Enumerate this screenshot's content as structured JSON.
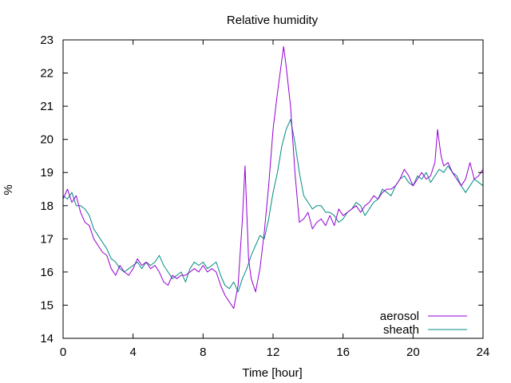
{
  "chart_data": {
    "type": "line",
    "title": "Relative humidity",
    "xlabel": "Time [hour]",
    "ylabel": "%",
    "xlim": [
      0,
      24
    ],
    "ylim": [
      14,
      23
    ],
    "x_ticks": [
      0,
      4,
      8,
      12,
      16,
      20,
      24
    ],
    "y_ticks": [
      14,
      15,
      16,
      17,
      18,
      19,
      20,
      21,
      22,
      23
    ],
    "grid": false,
    "legend_position": "bottom-right",
    "series": [
      {
        "name": "aerosol",
        "color": "#9400d3",
        "points": [
          [
            0.0,
            18.2
          ],
          [
            0.25,
            18.5
          ],
          [
            0.5,
            18.1
          ],
          [
            0.75,
            18.3
          ],
          [
            1.0,
            17.8
          ],
          [
            1.25,
            17.5
          ],
          [
            1.5,
            17.4
          ],
          [
            1.75,
            17.0
          ],
          [
            2.0,
            16.8
          ],
          [
            2.25,
            16.6
          ],
          [
            2.5,
            16.5
          ],
          [
            2.75,
            16.1
          ],
          [
            3.0,
            15.9
          ],
          [
            3.25,
            16.2
          ],
          [
            3.5,
            16.0
          ],
          [
            3.75,
            15.9
          ],
          [
            4.0,
            16.1
          ],
          [
            4.25,
            16.4
          ],
          [
            4.5,
            16.2
          ],
          [
            4.75,
            16.3
          ],
          [
            5.0,
            16.1
          ],
          [
            5.25,
            16.2
          ],
          [
            5.5,
            16.0
          ],
          [
            5.75,
            15.7
          ],
          [
            6.0,
            15.6
          ],
          [
            6.25,
            15.9
          ],
          [
            6.5,
            15.8
          ],
          [
            6.75,
            15.9
          ],
          [
            7.0,
            15.9
          ],
          [
            7.25,
            16.0
          ],
          [
            7.5,
            16.1
          ],
          [
            7.75,
            16.0
          ],
          [
            8.0,
            16.2
          ],
          [
            8.25,
            16.0
          ],
          [
            8.5,
            16.1
          ],
          [
            8.75,
            16.0
          ],
          [
            9.0,
            15.6
          ],
          [
            9.25,
            15.3
          ],
          [
            9.5,
            15.1
          ],
          [
            9.75,
            14.9
          ],
          [
            10.0,
            15.6
          ],
          [
            10.25,
            17.6
          ],
          [
            10.4,
            19.2
          ],
          [
            10.6,
            16.4
          ],
          [
            10.75,
            15.8
          ],
          [
            11.0,
            15.4
          ],
          [
            11.25,
            16.1
          ],
          [
            11.5,
            17.2
          ],
          [
            11.75,
            18.6
          ],
          [
            12.0,
            20.3
          ],
          [
            12.25,
            21.4
          ],
          [
            12.5,
            22.4
          ],
          [
            12.6,
            22.8
          ],
          [
            12.75,
            22.2
          ],
          [
            13.0,
            21.0
          ],
          [
            13.25,
            19.0
          ],
          [
            13.5,
            17.5
          ],
          [
            13.75,
            17.6
          ],
          [
            14.0,
            17.8
          ],
          [
            14.25,
            17.3
          ],
          [
            14.5,
            17.5
          ],
          [
            14.75,
            17.6
          ],
          [
            15.0,
            17.4
          ],
          [
            15.25,
            17.7
          ],
          [
            15.5,
            17.4
          ],
          [
            15.75,
            17.9
          ],
          [
            16.0,
            17.7
          ],
          [
            16.25,
            17.8
          ],
          [
            16.5,
            17.9
          ],
          [
            16.75,
            18.0
          ],
          [
            17.0,
            17.8
          ],
          [
            17.25,
            18.0
          ],
          [
            17.5,
            18.1
          ],
          [
            17.75,
            18.3
          ],
          [
            18.0,
            18.2
          ],
          [
            18.25,
            18.4
          ],
          [
            18.5,
            18.5
          ],
          [
            18.75,
            18.5
          ],
          [
            19.0,
            18.6
          ],
          [
            19.25,
            18.8
          ],
          [
            19.5,
            19.1
          ],
          [
            19.75,
            18.9
          ],
          [
            20.0,
            18.6
          ],
          [
            20.25,
            18.8
          ],
          [
            20.5,
            19.0
          ],
          [
            20.75,
            18.8
          ],
          [
            21.0,
            18.9
          ],
          [
            21.25,
            19.3
          ],
          [
            21.4,
            20.3
          ],
          [
            21.6,
            19.5
          ],
          [
            21.75,
            19.2
          ],
          [
            22.0,
            19.3
          ],
          [
            22.25,
            19.0
          ],
          [
            22.5,
            18.8
          ],
          [
            22.75,
            18.6
          ],
          [
            23.0,
            18.8
          ],
          [
            23.25,
            19.3
          ],
          [
            23.5,
            18.8
          ],
          [
            23.75,
            18.9
          ],
          [
            24.0,
            19.1
          ]
        ]
      },
      {
        "name": "sheath",
        "color": "#008b80",
        "points": [
          [
            0.0,
            18.3
          ],
          [
            0.25,
            18.2
          ],
          [
            0.5,
            18.4
          ],
          [
            0.75,
            18.0
          ],
          [
            1.0,
            18.0
          ],
          [
            1.25,
            17.9
          ],
          [
            1.5,
            17.7
          ],
          [
            1.75,
            17.3
          ],
          [
            2.0,
            17.1
          ],
          [
            2.25,
            16.9
          ],
          [
            2.5,
            16.7
          ],
          [
            2.75,
            16.4
          ],
          [
            3.0,
            16.3
          ],
          [
            3.25,
            16.1
          ],
          [
            3.5,
            16.0
          ],
          [
            3.75,
            16.1
          ],
          [
            4.0,
            16.2
          ],
          [
            4.25,
            16.3
          ],
          [
            4.5,
            16.1
          ],
          [
            4.75,
            16.3
          ],
          [
            5.0,
            16.2
          ],
          [
            5.25,
            16.3
          ],
          [
            5.5,
            16.5
          ],
          [
            5.75,
            16.2
          ],
          [
            6.0,
            16.0
          ],
          [
            6.25,
            15.8
          ],
          [
            6.5,
            15.9
          ],
          [
            6.75,
            16.0
          ],
          [
            7.0,
            15.7
          ],
          [
            7.25,
            16.1
          ],
          [
            7.5,
            16.3
          ],
          [
            7.75,
            16.2
          ],
          [
            8.0,
            16.3
          ],
          [
            8.25,
            16.1
          ],
          [
            8.5,
            16.2
          ],
          [
            8.75,
            16.3
          ],
          [
            9.0,
            15.9
          ],
          [
            9.25,
            15.6
          ],
          [
            9.5,
            15.5
          ],
          [
            9.75,
            15.7
          ],
          [
            10.0,
            15.4
          ],
          [
            10.25,
            15.8
          ],
          [
            10.5,
            16.1
          ],
          [
            10.75,
            16.5
          ],
          [
            11.0,
            16.8
          ],
          [
            11.25,
            17.1
          ],
          [
            11.5,
            17.0
          ],
          [
            11.75,
            17.6
          ],
          [
            12.0,
            18.4
          ],
          [
            12.25,
            19.0
          ],
          [
            12.5,
            19.8
          ],
          [
            12.75,
            20.3
          ],
          [
            13.0,
            20.6
          ],
          [
            13.25,
            19.9
          ],
          [
            13.5,
            19.0
          ],
          [
            13.75,
            18.3
          ],
          [
            14.0,
            18.1
          ],
          [
            14.25,
            17.9
          ],
          [
            14.5,
            18.0
          ],
          [
            14.75,
            18.0
          ],
          [
            15.0,
            17.8
          ],
          [
            15.25,
            17.8
          ],
          [
            15.5,
            17.7
          ],
          [
            15.75,
            17.5
          ],
          [
            16.0,
            17.6
          ],
          [
            16.25,
            17.8
          ],
          [
            16.5,
            17.9
          ],
          [
            16.75,
            18.1
          ],
          [
            17.0,
            18.0
          ],
          [
            17.25,
            17.7
          ],
          [
            17.5,
            17.9
          ],
          [
            17.75,
            18.1
          ],
          [
            18.0,
            18.2
          ],
          [
            18.25,
            18.5
          ],
          [
            18.5,
            18.4
          ],
          [
            18.75,
            18.3
          ],
          [
            19.0,
            18.6
          ],
          [
            19.25,
            18.8
          ],
          [
            19.5,
            18.9
          ],
          [
            19.75,
            18.7
          ],
          [
            20.0,
            18.6
          ],
          [
            20.25,
            18.9
          ],
          [
            20.5,
            18.8
          ],
          [
            20.75,
            19.0
          ],
          [
            21.0,
            18.7
          ],
          [
            21.25,
            18.9
          ],
          [
            21.5,
            19.1
          ],
          [
            21.75,
            19.0
          ],
          [
            22.0,
            19.2
          ],
          [
            22.25,
            19.0
          ],
          [
            22.5,
            18.9
          ],
          [
            22.75,
            18.6
          ],
          [
            23.0,
            18.4
          ],
          [
            23.25,
            18.6
          ],
          [
            23.5,
            18.8
          ],
          [
            23.75,
            18.7
          ],
          [
            24.0,
            18.6
          ]
        ]
      }
    ]
  }
}
